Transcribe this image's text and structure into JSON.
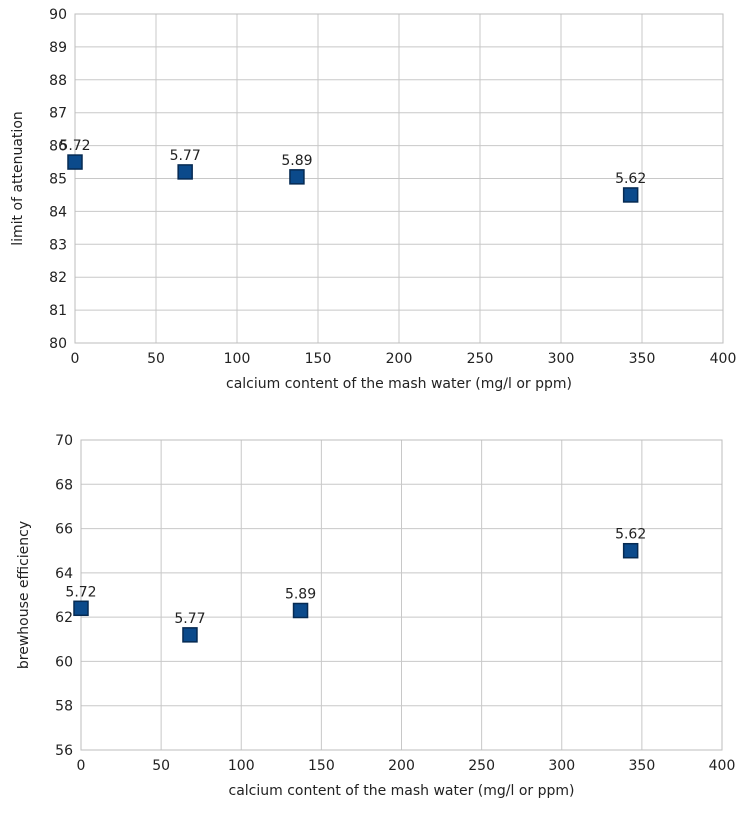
{
  "chart_data": [
    {
      "type": "scatter",
      "title": "",
      "xlabel": "calcium content of the mash water (mg/l or ppm)",
      "ylabel": "limit of attenuation",
      "xlim": [
        0,
        400
      ],
      "ylim": [
        80,
        90
      ],
      "x_ticks": [
        "0",
        "50",
        "100",
        "150",
        "200",
        "250",
        "300",
        "350",
        "400"
      ],
      "y_ticks": [
        "80",
        "81",
        "82",
        "83",
        "84",
        "85",
        "86",
        "87",
        "88",
        "89",
        "90"
      ],
      "grid": true,
      "legend": "none",
      "marker_color": "#0b4a8b",
      "points": [
        {
          "x": 0,
          "y": 85.5,
          "label": "5.72"
        },
        {
          "x": 68,
          "y": 85.2,
          "label": "5.77"
        },
        {
          "x": 137,
          "y": 85.05,
          "label": "5.89"
        },
        {
          "x": 343,
          "y": 84.5,
          "label": "5.62"
        }
      ]
    },
    {
      "type": "scatter",
      "title": "",
      "xlabel": "calcium content of the mash water (mg/l or ppm)",
      "ylabel": "brewhouse efficiency",
      "xlim": [
        0,
        400
      ],
      "ylim": [
        56,
        70
      ],
      "x_ticks": [
        "0",
        "50",
        "100",
        "150",
        "200",
        "250",
        "300",
        "350",
        "400"
      ],
      "y_ticks": [
        "56",
        "58",
        "60",
        "62",
        "64",
        "66",
        "68",
        "70"
      ],
      "grid": true,
      "legend": "none",
      "marker_color": "#0b4a8b",
      "points": [
        {
          "x": 0,
          "y": 62.4,
          "label": "5.72"
        },
        {
          "x": 68,
          "y": 61.2,
          "label": "5.77"
        },
        {
          "x": 137,
          "y": 62.3,
          "label": "5.89"
        },
        {
          "x": 343,
          "y": 65.0,
          "label": "5.62"
        }
      ]
    }
  ]
}
